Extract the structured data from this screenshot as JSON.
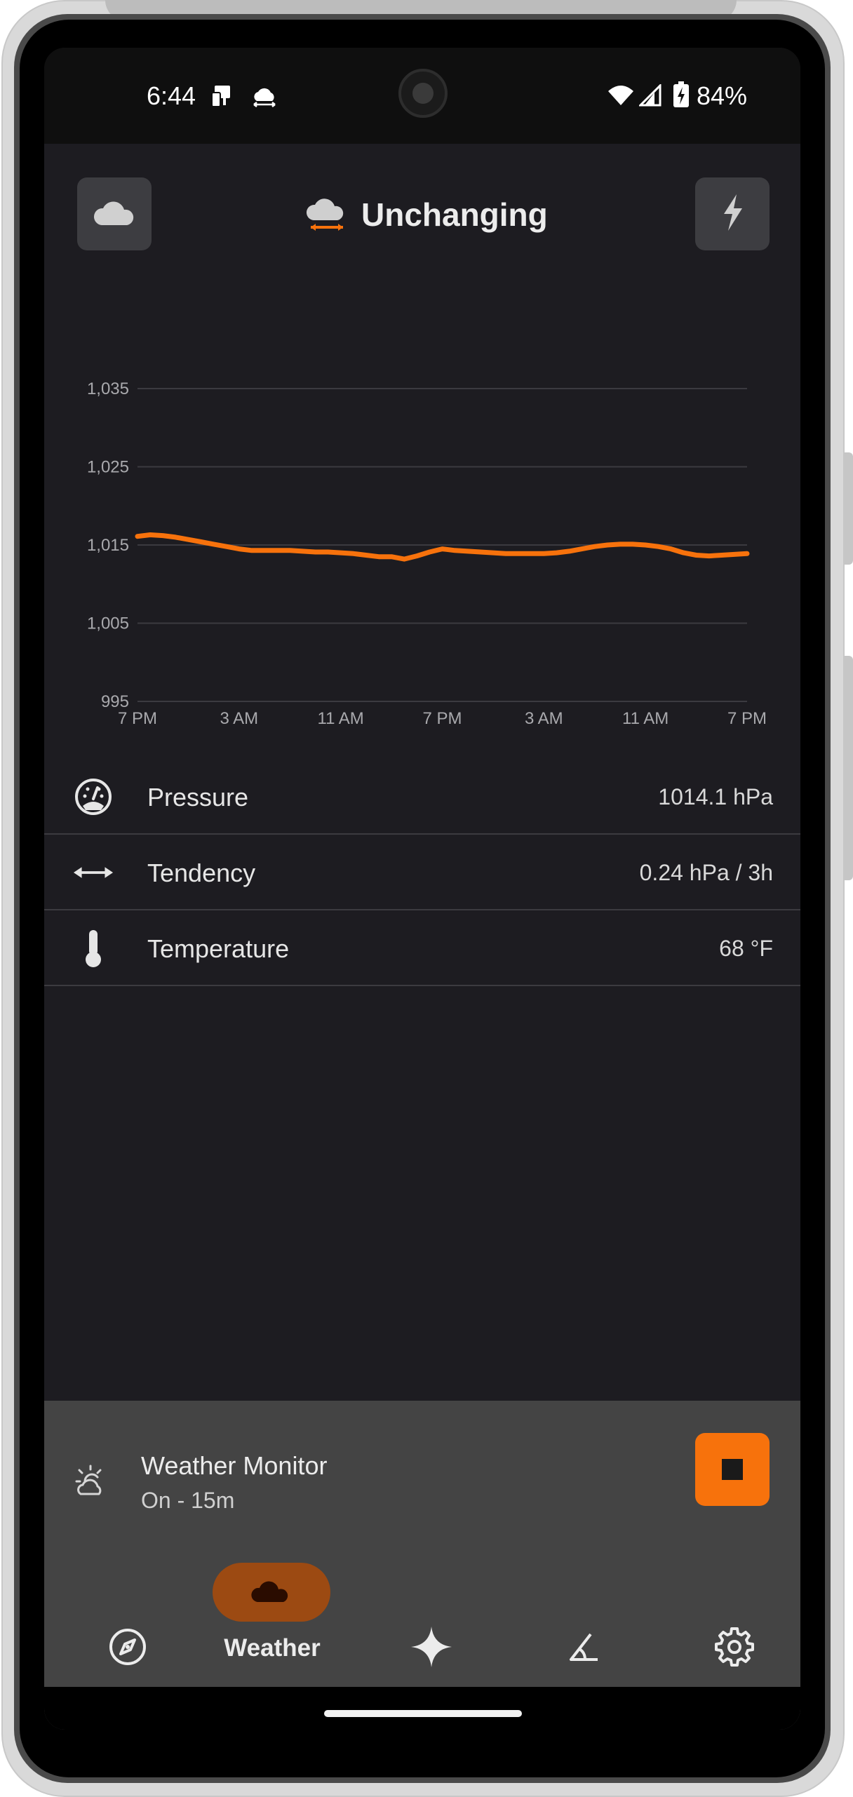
{
  "status_bar": {
    "time": "6:44",
    "battery": "84%"
  },
  "header": {
    "title": "Unchanging"
  },
  "chart_data": {
    "type": "line",
    "x_tick_labels": [
      "7 PM",
      "3 AM",
      "11 AM",
      "7 PM",
      "3 AM",
      "11 AM",
      "7 PM"
    ],
    "y_tick_labels": [
      "1,035",
      "1,025",
      "1,015",
      "1,005",
      "995"
    ],
    "y_ticks": [
      1035,
      1025,
      1015,
      1005,
      995
    ],
    "ylim": [
      995,
      1035
    ],
    "x_range_hours": [
      0,
      48
    ],
    "grid": true,
    "line_color": "#f7720c",
    "series": [
      {
        "x": [
          0,
          1,
          2,
          3,
          4,
          5,
          6,
          7,
          8,
          9,
          10,
          11,
          12,
          13,
          14,
          15,
          16,
          17,
          18,
          19,
          20,
          21,
          22,
          23,
          24,
          25,
          26,
          27,
          28,
          29,
          30,
          31,
          32,
          33,
          34,
          35,
          36,
          37,
          38,
          39,
          40,
          41,
          42,
          43,
          44,
          45,
          46,
          47,
          48
        ],
        "values": [
          1016.1,
          1016.3,
          1016.2,
          1016.0,
          1015.7,
          1015.4,
          1015.1,
          1014.8,
          1014.5,
          1014.3,
          1014.3,
          1014.3,
          1014.3,
          1014.2,
          1014.1,
          1014.1,
          1014.0,
          1013.9,
          1013.7,
          1013.5,
          1013.5,
          1013.2,
          1013.6,
          1014.1,
          1014.5,
          1014.3,
          1014.2,
          1014.1,
          1014.0,
          1013.9,
          1013.9,
          1013.9,
          1013.9,
          1014.0,
          1014.2,
          1014.5,
          1014.8,
          1015.0,
          1015.1,
          1015.1,
          1015.0,
          1014.8,
          1014.5,
          1014.0,
          1013.7,
          1013.6,
          1013.7,
          1013.8,
          1013.9
        ]
      }
    ]
  },
  "info_rows": [
    {
      "label": "Pressure",
      "value": "1014.1 hPa",
      "icon": "gauge-icon"
    },
    {
      "label": "Tendency",
      "value": "0.24 hPa / 3h",
      "icon": "double-arrow-icon"
    },
    {
      "label": "Temperature",
      "value": "68 °F",
      "icon": "thermometer-icon"
    }
  ],
  "monitor": {
    "title": "Weather Monitor",
    "subtitle": "On - 15m",
    "accent": "#f7720c"
  },
  "nav": {
    "active_label": "Weather",
    "items": [
      "compass-icon",
      "cloud-icon",
      "sparkle-icon",
      "angle-icon",
      "settings-gear-icon"
    ]
  }
}
